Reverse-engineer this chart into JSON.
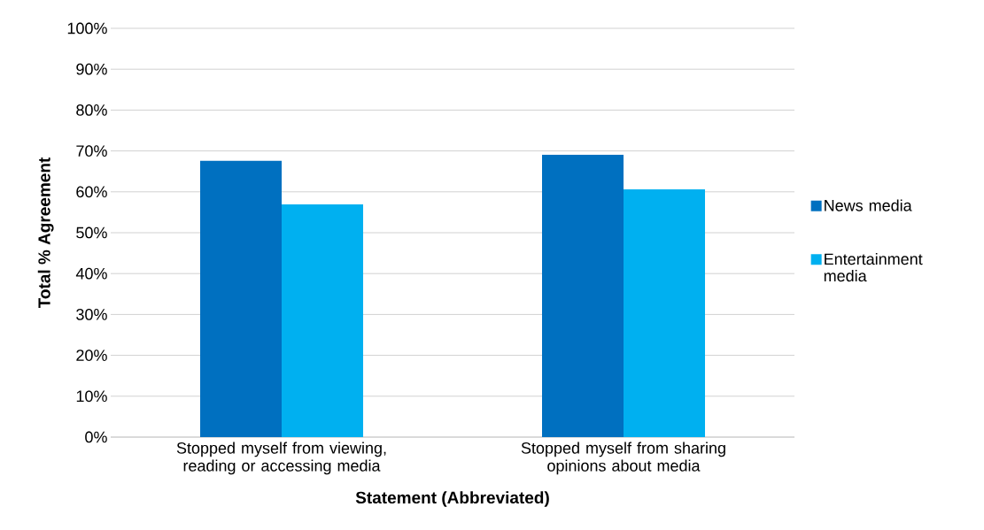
{
  "chart_data": {
    "type": "bar",
    "xlabel": "Statement (Abbreviated)",
    "ylabel": "Total % Agreement",
    "categories": [
      "Stopped myself from viewing, reading or accessing media",
      "Stopped myself from sharing opinions about media"
    ],
    "series": [
      {
        "name": "News media",
        "color": "#0070c0",
        "values": [
          67.6,
          69.1
        ]
      },
      {
        "name": "Entertainment media",
        "color": "#00b0f0",
        "values": [
          56.9,
          60.6
        ]
      }
    ],
    "ylim": [
      0,
      100
    ],
    "yticks": [
      {
        "value": 0,
        "label": "0%"
      },
      {
        "value": 10,
        "label": "10%"
      },
      {
        "value": 20,
        "label": "20%"
      },
      {
        "value": 30,
        "label": "30%"
      },
      {
        "value": 40,
        "label": "40%"
      },
      {
        "value": 50,
        "label": "50%"
      },
      {
        "value": 60,
        "label": "60%"
      },
      {
        "value": 70,
        "label": "70%"
      },
      {
        "value": 80,
        "label": "80%"
      },
      {
        "value": 90,
        "label": "90%"
      },
      {
        "value": 100,
        "label": "100%"
      }
    ],
    "grid": "y",
    "legend": "right"
  }
}
